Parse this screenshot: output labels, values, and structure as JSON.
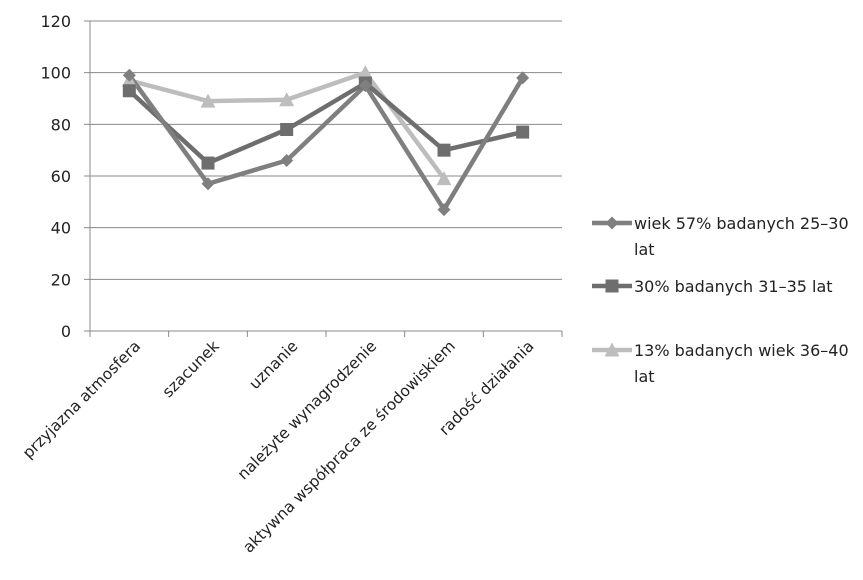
{
  "chart_data": {
    "type": "line",
    "title": "",
    "xlabel": "",
    "ylabel": "",
    "ylim": [
      0,
      120
    ],
    "yticks": [
      0,
      20,
      40,
      60,
      80,
      100,
      120
    ],
    "grid": true,
    "legend_position": "right",
    "categories": [
      "przyjazna atmosfera",
      "szacunek",
      "uznanie",
      "należyte wynagrodzenie",
      "aktywna współpraca ze środowiskiem",
      "radość działania"
    ],
    "series": [
      {
        "name": "wiek 57% badanych 25–30 lat",
        "legend_lines": [
          "wiek 57% badanych 25–30",
          "lat"
        ],
        "marker": "diamond",
        "color": "#7f7f7f",
        "values": [
          99,
          57,
          66,
          95,
          47,
          98
        ]
      },
      {
        "name": "30% badanych 31–35 lat",
        "legend_lines": [
          "30% badanych 31–35 lat"
        ],
        "marker": "square",
        "color": "#6e6e6e",
        "values": [
          93,
          65,
          78,
          96,
          70,
          77
        ]
      },
      {
        "name": "13% badanych wiek 36–40 lat",
        "legend_lines": [
          "13% badanych wiek 36–40",
          "lat"
        ],
        "marker": "triangle",
        "color": "#bdbdbd",
        "values": [
          97,
          89,
          89.5,
          100,
          59,
          null
        ]
      }
    ]
  }
}
